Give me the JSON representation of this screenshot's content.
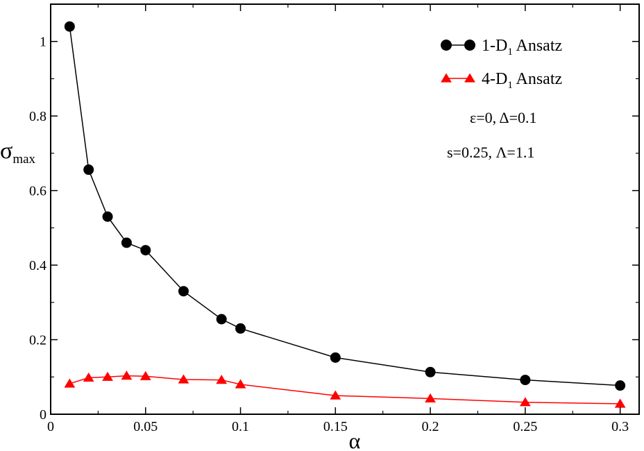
{
  "chart_data": {
    "type": "line",
    "xlabel": "α",
    "ylabel": "σ",
    "ylabel_sub": "max",
    "xlim": [
      0,
      0.31
    ],
    "ylim": [
      0,
      1.1
    ],
    "xticks": [
      0,
      0.05,
      0.1,
      0.15,
      0.2,
      0.25,
      0.3
    ],
    "xtick_labels": [
      "0",
      "0.05",
      "0.1",
      "0.15",
      "0.2",
      "0.25",
      "0.3"
    ],
    "yticks": [
      0,
      0.2,
      0.4,
      0.6,
      0.8,
      1.0
    ],
    "ytick_labels": [
      "0",
      "0.2",
      "0.4",
      "0.6",
      "0.8",
      "1"
    ],
    "grid": false,
    "legend_position": "top-right",
    "series": [
      {
        "name": "1-D1 Ansatz",
        "legend_main": "1-D",
        "legend_sub": "1",
        "legend_rest": " Ansatz",
        "color": "#000000",
        "marker": "circle",
        "x": [
          0.01,
          0.02,
          0.03,
          0.04,
          0.05,
          0.07,
          0.09,
          0.1,
          0.15,
          0.2,
          0.25,
          0.3
        ],
        "y": [
          1.04,
          0.656,
          0.53,
          0.46,
          0.44,
          0.33,
          0.255,
          0.23,
          0.152,
          0.113,
          0.092,
          0.077
        ]
      },
      {
        "name": "4-D1 Ansatz",
        "legend_main": "4-D",
        "legend_sub": "1",
        "legend_rest": " Ansatz",
        "color": "#ff0000",
        "marker": "triangle",
        "x": [
          0.01,
          0.02,
          0.03,
          0.04,
          0.05,
          0.07,
          0.09,
          0.1,
          0.15,
          0.2,
          0.25,
          0.3
        ],
        "y": [
          0.082,
          0.098,
          0.1,
          0.103,
          0.102,
          0.093,
          0.092,
          0.08,
          0.05,
          0.042,
          0.032,
          0.028
        ]
      }
    ],
    "annotations": [
      "ε=0,  Δ=0.1",
      "s=0.25,  Λ=1.1"
    ]
  }
}
